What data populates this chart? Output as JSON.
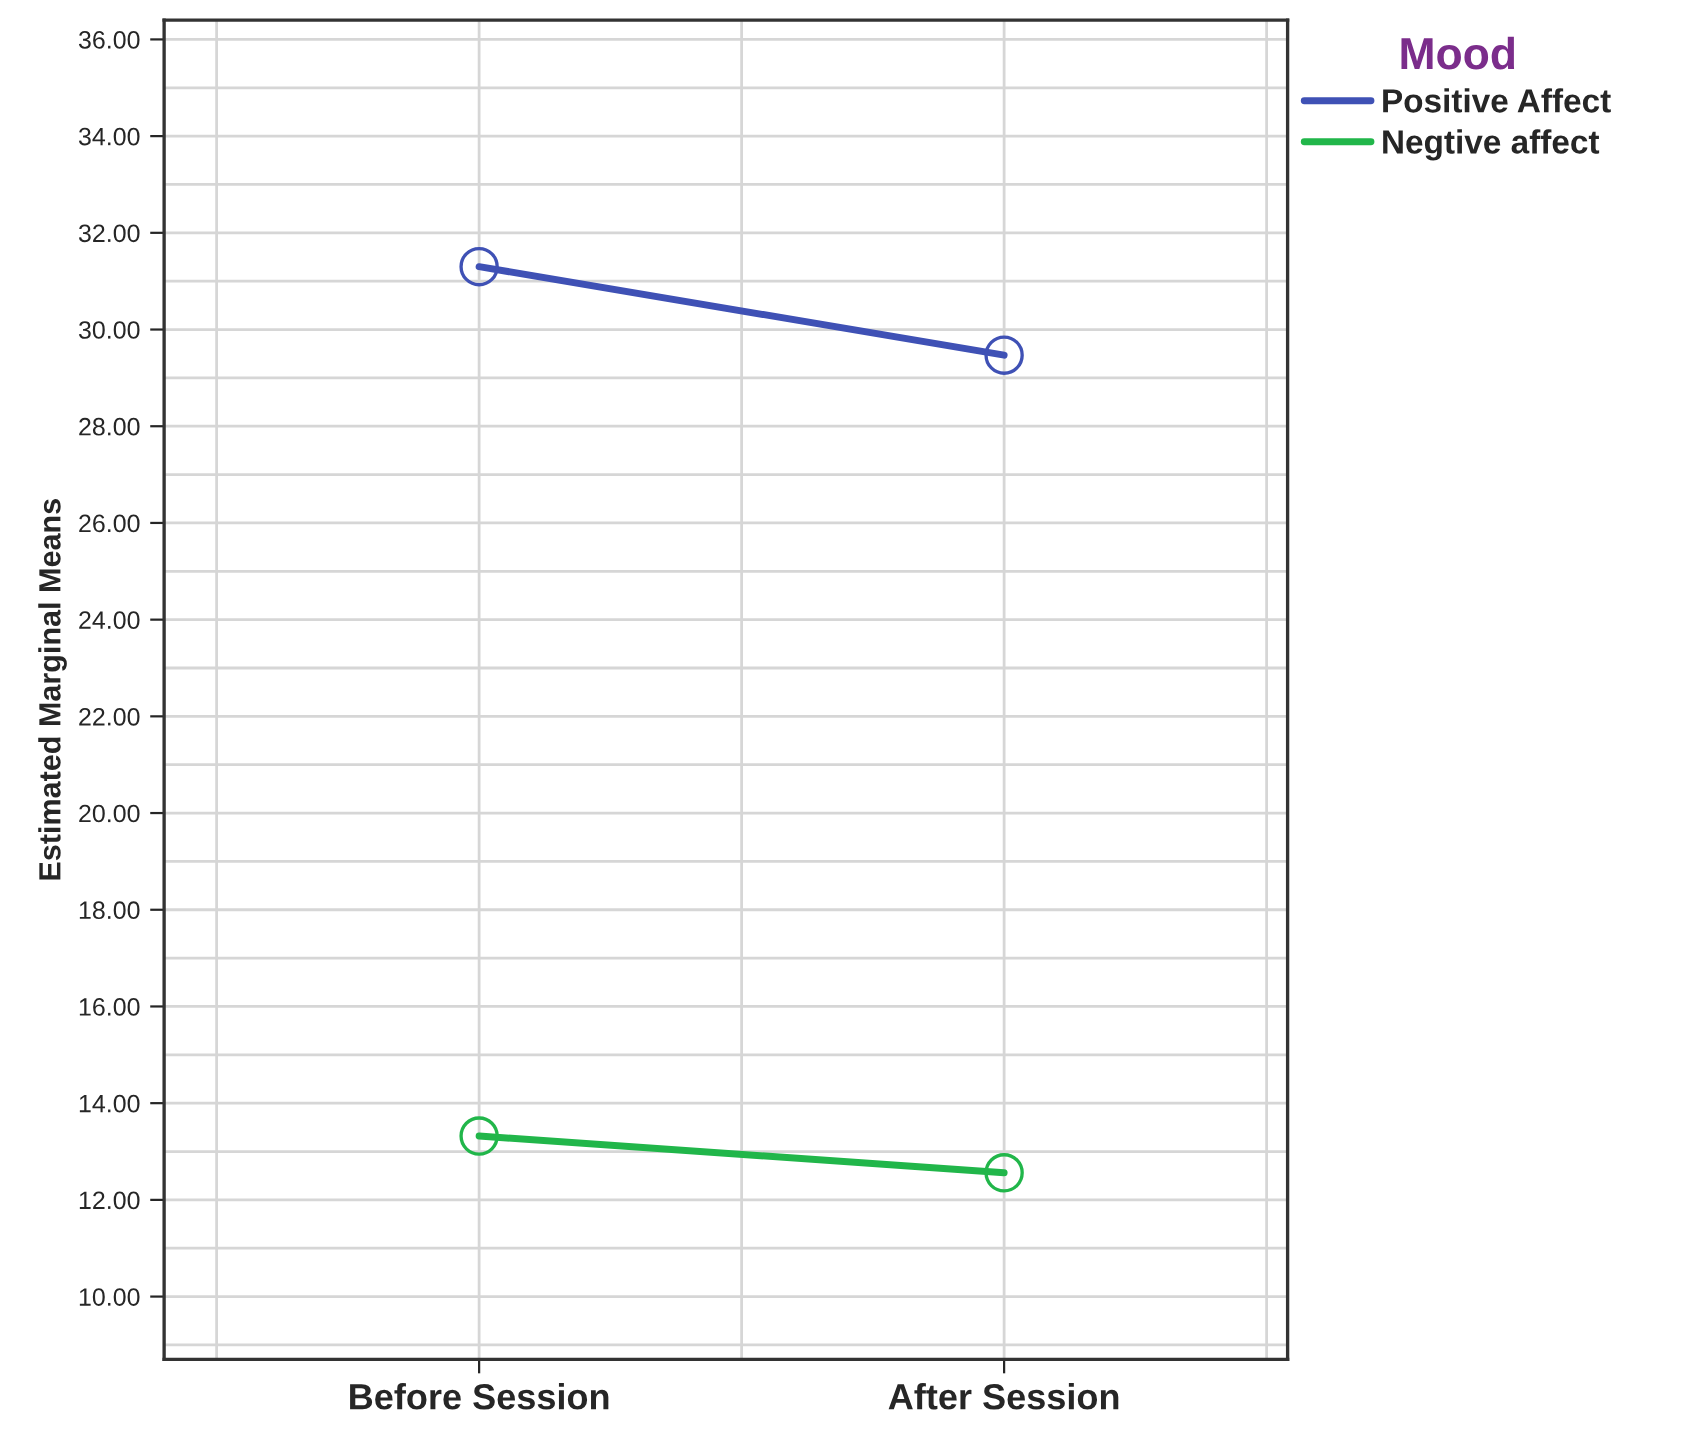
{
  "chart_data": {
    "type": "line",
    "ylabel": "Estimated Marginal Means",
    "legend_title": "Mood",
    "categories": [
      "Before Session",
      "After Session"
    ],
    "series": [
      {
        "name": "Positive Affect",
        "color": "#3f51b5",
        "values": [
          31.3,
          29.47
        ]
      },
      {
        "name": "Negtive affect",
        "color": "#21b64a",
        "values": [
          13.32,
          12.56
        ]
      }
    ],
    "ylim": [
      8.7,
      36.4
    ],
    "yticks": [
      {
        "value": 10,
        "label": "10.00"
      },
      {
        "value": 12,
        "label": "12.00"
      },
      {
        "value": 14,
        "label": "14.00"
      },
      {
        "value": 16,
        "label": "16.00"
      },
      {
        "value": 18,
        "label": "18.00"
      },
      {
        "value": 20,
        "label": "20.00"
      },
      {
        "value": 22,
        "label": "22.00"
      },
      {
        "value": 24,
        "label": "24.00"
      },
      {
        "value": 26,
        "label": "26.00"
      },
      {
        "value": 28,
        "label": "28.00"
      },
      {
        "value": 30,
        "label": "30.00"
      },
      {
        "value": 32,
        "label": "32.00"
      },
      {
        "value": 34,
        "label": "34.00"
      },
      {
        "value": 36,
        "label": "36.00"
      }
    ],
    "grid": true,
    "legend": "top right",
    "marker": "circle",
    "line_style": "solid"
  }
}
